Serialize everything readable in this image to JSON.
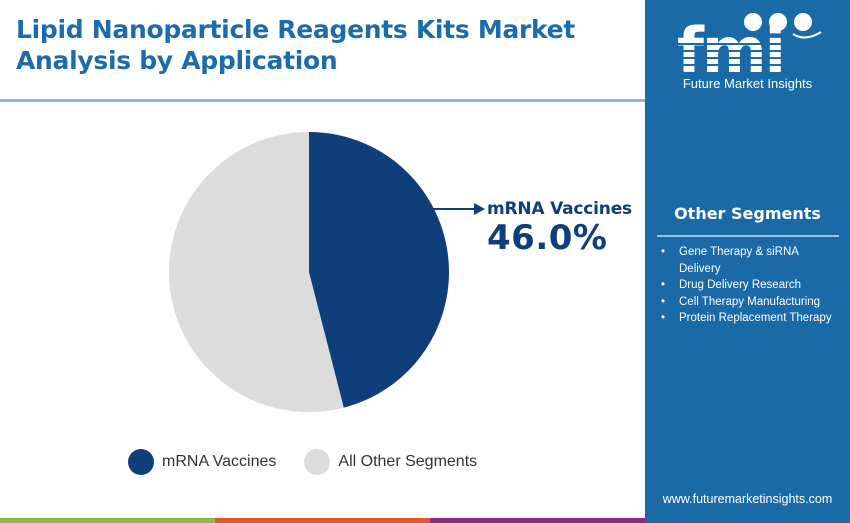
{
  "header": {
    "title": "Lipid Nanoparticle Reagents Kits Market Analysis by Application"
  },
  "callout": {
    "label": "mRNA Vaccines",
    "value": "46.0%"
  },
  "legend": {
    "items": [
      {
        "label": "mRNA Vaccines",
        "color": "#0e3f7a"
      },
      {
        "label": "All Other Segments",
        "color": "#dcdcdc"
      }
    ]
  },
  "sidebar": {
    "logo_text": "fmi",
    "logo_caption": "Future Market Insights",
    "segments_title": "Other Segments",
    "segments": [
      "Gene Therapy & siRNA Delivery",
      "Drug Delivery Research",
      "Cell Therapy Manufacturing",
      "Protein Replacement Therapy"
    ],
    "url": "www.futuremarketinsights.com"
  },
  "colors": {
    "title": "#1c6bab",
    "primary_slice": "#0e3f7a",
    "other_slice": "#dcdcdc",
    "sidebar_bg": "#1a6aa8",
    "bar_green": "#8bbd45",
    "bar_orange": "#e5572b",
    "bar_purple": "#8a2a85"
  },
  "chart_data": {
    "type": "pie",
    "title": "Lipid Nanoparticle Reagents Kits Market Analysis by Application",
    "categories": [
      "mRNA Vaccines",
      "All Other Segments"
    ],
    "values": [
      46.0,
      54.0
    ],
    "unit": "%",
    "annotations": [
      {
        "label": "mRNA Vaccines",
        "value": "46.0%"
      }
    ],
    "legend_position": "bottom"
  }
}
